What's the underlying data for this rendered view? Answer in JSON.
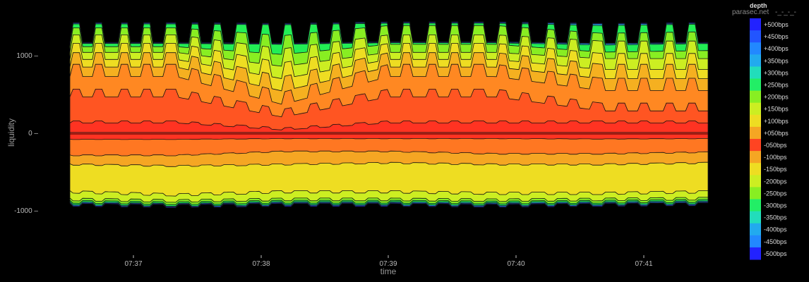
{
  "chart_data": {
    "type": "area",
    "xlabel": "time",
    "ylabel": "liquidity",
    "x_ticks": [
      "07:37",
      "07:38",
      "07:39",
      "07:40",
      "07:41"
    ],
    "y_ticks": [
      1000,
      0,
      -1000
    ],
    "ylim": [
      -1200,
      1450
    ],
    "x_range": [
      "07:36:30",
      "07:41:30"
    ],
    "legend_title": "depth",
    "legend_position": "right",
    "watermark": "parasec.net",
    "watermark_suffix": "-_-_-_-",
    "grid": false,
    "levels": [
      {
        "label": "+500bps",
        "color": "#2222ff"
      },
      {
        "label": "+450bps",
        "color": "#2255ff"
      },
      {
        "label": "+400bps",
        "color": "#2288ff"
      },
      {
        "label": "+350bps",
        "color": "#22aaee"
      },
      {
        "label": "+300bps",
        "color": "#22ddbb"
      },
      {
        "label": "+250bps",
        "color": "#22ee66"
      },
      {
        "label": "+200bps",
        "color": "#88ee22"
      },
      {
        "label": "+150bps",
        "color": "#ccee22"
      },
      {
        "label": "+100bps",
        "color": "#eedd22"
      },
      {
        "label": "+050bps",
        "color": "#f5a623"
      },
      {
        "label": "-050bps",
        "color": "#ff4422"
      },
      {
        "label": "-100bps",
        "color": "#f5a623"
      },
      {
        "label": "-150bps",
        "color": "#eedd22"
      },
      {
        "label": "-200bps",
        "color": "#ccee22"
      },
      {
        "label": "-250bps",
        "color": "#88ee22"
      },
      {
        "label": "-300bps",
        "color": "#22ee66"
      },
      {
        "label": "-350bps",
        "color": "#22ddbb"
      },
      {
        "label": "-400bps",
        "color": "#22aaee"
      },
      {
        "label": "-450bps",
        "color": "#2288ff"
      },
      {
        "label": "-500bps",
        "color": "#2222ff"
      }
    ],
    "ask_layers": [
      {
        "label": "+050bps",
        "color": "#ff3322",
        "values_approx": [
          150,
          150,
          60,
          150,
          150,
          150,
          150
        ]
      },
      {
        "label": "+100bps",
        "color": "#ff5522",
        "values_approx": [
          560,
          560,
          300,
          560,
          560,
          380,
          380
        ]
      },
      {
        "label": "+150bps",
        "color": "#ff8822",
        "values_approx": [
          880,
          880,
          520,
          880,
          880,
          700,
          700
        ]
      },
      {
        "label": "+200bps",
        "color": "#f5b020",
        "values_approx": [
          1030,
          1030,
          720,
          1030,
          1030,
          880,
          880
        ]
      },
      {
        "label": "+250bps",
        "color": "#eedd22",
        "values_approx": [
          1150,
          1150,
          900,
          1150,
          1150,
          1020,
          1020
        ]
      },
      {
        "label": "+300bps",
        "color": "#ccee22",
        "values_approx": [
          1260,
          1260,
          1080,
          1260,
          1260,
          1180,
          1180
        ]
      },
      {
        "label": "+350bps",
        "color": "#88ee22",
        "values_approx": [
          1350,
          1350,
          1250,
          1380,
          1380,
          1280,
          1300
        ]
      },
      {
        "label": "+400bps",
        "color": "#22ee55",
        "values_approx": [
          1400,
          1400,
          1390,
          1410,
          1410,
          1380,
          1400
        ]
      },
      {
        "label": "+450bps",
        "color": "#22aaee",
        "values_approx": [
          1410,
          1410,
          1400,
          1420,
          1420,
          1400,
          1410
        ]
      },
      {
        "label": "+500bps",
        "color": "#2222ff",
        "values_approx": [
          1420,
          1420,
          1410,
          1430,
          1430,
          1410,
          1420
        ]
      }
    ],
    "bid_layers": [
      {
        "label": "-050bps",
        "color": "#ff3322",
        "values_approx": [
          -90,
          -90,
          -80,
          -80,
          -80,
          -85,
          -80
        ]
      },
      {
        "label": "-100bps",
        "color": "#ff7722",
        "values_approx": [
          -300,
          -300,
          -250,
          -250,
          -280,
          -280,
          -260
        ]
      },
      {
        "label": "-150bps",
        "color": "#f5a623",
        "values_approx": [
          -420,
          -440,
          -420,
          -400,
          -420,
          -420,
          -400
        ]
      },
      {
        "label": "-200bps",
        "color": "#eedd22",
        "values_approx": [
          -780,
          -820,
          -780,
          -780,
          -800,
          -800,
          -780
        ]
      },
      {
        "label": "-250bps",
        "color": "#ccee22",
        "values_approx": [
          -880,
          -900,
          -880,
          -880,
          -890,
          -880,
          -870
        ]
      },
      {
        "label": "-300bps",
        "color": "#88ee22",
        "values_approx": [
          -910,
          -930,
          -910,
          -910,
          -920,
          -910,
          -900
        ]
      },
      {
        "label": "-350bps",
        "color": "#22ee55",
        "values_approx": [
          -930,
          -950,
          -930,
          -930,
          -940,
          -930,
          -920
        ]
      },
      {
        "label": "-400bps",
        "color": "#22aaee",
        "values_approx": [
          -945,
          -960,
          -945,
          -945,
          -955,
          -945,
          -935
        ]
      },
      {
        "label": "-450bps",
        "color": "#2222ff",
        "values_approx": [
          -955,
          -970,
          -955,
          -955,
          -965,
          -955,
          -945
        ]
      }
    ]
  }
}
